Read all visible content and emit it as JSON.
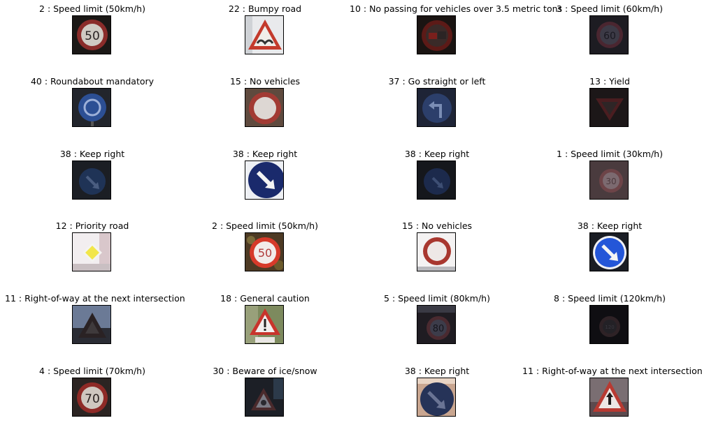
{
  "captions": [
    [
      "2 : Speed limit (50km/h)",
      "22 : Bumpy road",
      "10 : No passing for vehicles over 3.5 metric tons",
      "3 : Speed limit (60km/h)"
    ],
    [
      "40 : Roundabout mandatory",
      "15 : No vehicles",
      "37 : Go straight or left",
      "13 : Yield"
    ],
    [
      "38 : Keep right",
      "38 : Keep right",
      "38 : Keep right",
      "1 : Speed limit (30km/h)"
    ],
    [
      "12 : Priority road",
      "2 : Speed limit (50km/h)",
      "15 : No vehicles",
      "38 : Keep right"
    ],
    [
      "11 : Right-of-way at the next intersection",
      "18 : General caution",
      "5 : Speed limit (80km/h)",
      "8 : Speed limit (120km/h)"
    ],
    [
      "4 : Speed limit (70km/h)",
      "30 : Beware of ice/snow",
      "38 : Keep right",
      "11 : Right-of-way at the next intersection"
    ]
  ],
  "sign_text": {
    "r0c0": "50",
    "r0c3": "60",
    "r2c3": "30",
    "r3c1": "50",
    "r4c2": "80",
    "r4c3": "120",
    "r5c0": "70"
  }
}
